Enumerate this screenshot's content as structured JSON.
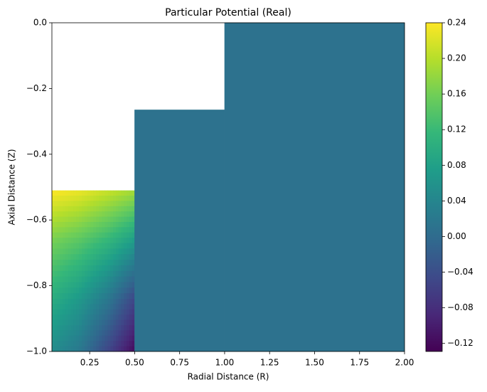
{
  "chart_data": {
    "type": "contour",
    "title": "Particular Potential (Real)",
    "xlabel": "Radial Distance (R)",
    "ylabel": "Axial Distance (Z)",
    "xlim": [
      0.04,
      2.0
    ],
    "ylim": [
      -1.0,
      0.0
    ],
    "xticks": [
      {
        "value": 0.25,
        "label": "0.25"
      },
      {
        "value": 0.5,
        "label": "0.50"
      },
      {
        "value": 0.75,
        "label": "0.75"
      },
      {
        "value": 1.0,
        "label": "1.00"
      },
      {
        "value": 1.25,
        "label": "1.25"
      },
      {
        "value": 1.5,
        "label": "1.50"
      },
      {
        "value": 1.75,
        "label": "1.75"
      },
      {
        "value": 2.0,
        "label": "2.00"
      }
    ],
    "yticks": [
      {
        "value": 0.0,
        "label": "0.0"
      },
      {
        "value": -0.2,
        "label": "−0.2"
      },
      {
        "value": -0.4,
        "label": "−0.4"
      },
      {
        "value": -0.6,
        "label": "−0.6"
      },
      {
        "value": -0.8,
        "label": "−0.8"
      },
      {
        "value": -1.0,
        "label": "−1.0"
      }
    ],
    "colorbar": {
      "colormap": "viridis",
      "clim": [
        -0.129,
        0.24
      ],
      "ticks": [
        {
          "value": 0.24,
          "label": "0.24"
        },
        {
          "value": 0.2,
          "label": "0.20"
        },
        {
          "value": 0.16,
          "label": "0.16"
        },
        {
          "value": 0.12,
          "label": "0.12"
        },
        {
          "value": 0.08,
          "label": "0.08"
        },
        {
          "value": 0.04,
          "label": "0.04"
        },
        {
          "value": 0.0,
          "label": "0.00"
        },
        {
          "value": -0.04,
          "label": "−0.04"
        },
        {
          "value": -0.08,
          "label": "−0.08"
        },
        {
          "value": -0.12,
          "label": "−0.12"
        }
      ]
    },
    "regions": [
      {
        "x": [
          0.04,
          0.19,
          0.35,
          0.5
        ],
        "y": [
          -0.51,
          -0.67,
          -0.84,
          -1.0
        ],
        "z": [
          [
            0.24,
            0.23,
            0.21,
            0.19
          ],
          [
            0.16,
            0.14,
            0.11,
            0.07
          ],
          [
            0.1,
            0.07,
            0.02,
            -0.05
          ],
          [
            0.05,
            0.02,
            -0.05,
            -0.12
          ]
        ]
      },
      {
        "x": [
          0.5,
          1.0
        ],
        "y": [
          -0.265,
          -1.0
        ],
        "value": 0.01
      },
      {
        "x": [
          1.0,
          2.0
        ],
        "y": [
          0.0,
          -1.0
        ],
        "value": 0.01
      }
    ]
  }
}
